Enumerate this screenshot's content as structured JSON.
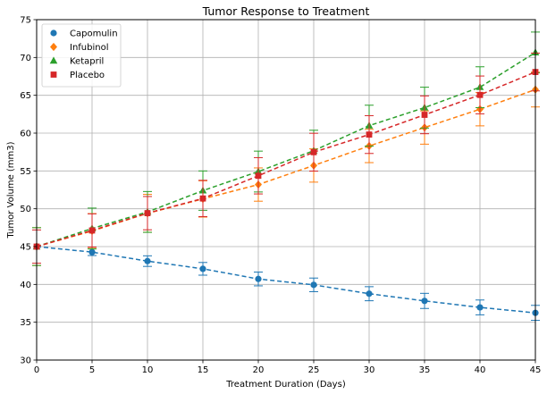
{
  "chart_data": {
    "type": "line",
    "title": "Tumor Response to Treatment",
    "xlabel": "Treatment Duration (Days)",
    "ylabel": "Tumor Volume (mm3)",
    "xlim": [
      0,
      45
    ],
    "ylim": [
      30,
      75
    ],
    "xticks": [
      0,
      5,
      10,
      15,
      20,
      25,
      30,
      35,
      40,
      45
    ],
    "yticks": [
      30,
      35,
      40,
      45,
      50,
      55,
      60,
      65,
      70,
      75
    ],
    "grid": true,
    "legend_position": "top-left",
    "x": [
      0,
      5,
      10,
      15,
      20,
      25,
      30,
      35,
      40,
      45
    ],
    "series": [
      {
        "name": "Capomulin",
        "marker": "circle",
        "color": "#1f77b4",
        "values": [
          45.0,
          44.27,
          43.08,
          42.06,
          40.72,
          39.94,
          38.77,
          37.82,
          36.96,
          36.24
        ],
        "errors": [
          0.0,
          0.45,
          0.7,
          0.84,
          0.91,
          0.9,
          0.93,
          1.0,
          0.98,
          0.99
        ]
      },
      {
        "name": "Infubinol",
        "marker": "diamond",
        "color": "#ff7f0e",
        "values": [
          45.0,
          47.06,
          49.4,
          51.3,
          53.2,
          55.72,
          58.3,
          60.74,
          63.16,
          65.76
        ],
        "errors": [
          2.5,
          2.3,
          2.5,
          2.4,
          2.2,
          2.2,
          2.2,
          2.2,
          2.2,
          2.3
        ]
      },
      {
        "name": "Ketapril",
        "marker": "triangle",
        "color": "#2ca02c",
        "values": [
          45.0,
          47.39,
          49.58,
          52.4,
          54.92,
          57.68,
          60.99,
          63.37,
          66.07,
          70.66
        ],
        "errors": [
          2.5,
          2.7,
          2.7,
          2.6,
          2.7,
          2.7,
          2.7,
          2.7,
          2.7,
          2.7
        ]
      },
      {
        "name": "Placebo",
        "marker": "square",
        "color": "#d62728",
        "values": [
          45.0,
          47.13,
          49.42,
          51.36,
          54.36,
          57.48,
          59.81,
          62.42,
          65.05,
          68.08
        ],
        "errors": [
          2.2,
          2.2,
          2.2,
          2.4,
          2.4,
          2.5,
          2.5,
          2.5,
          2.5,
          2.5
        ]
      }
    ]
  }
}
